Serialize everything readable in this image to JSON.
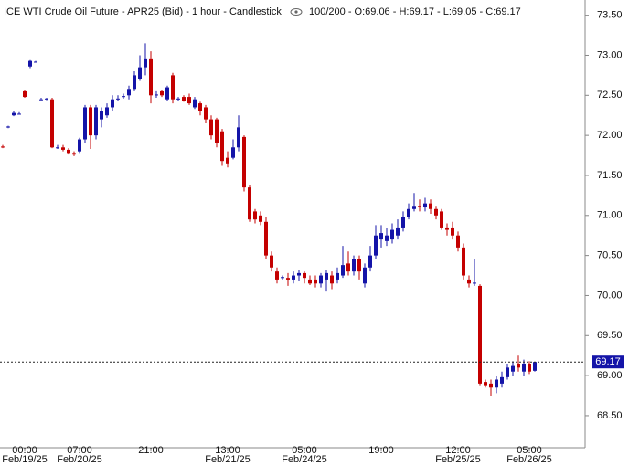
{
  "chart_data": {
    "type": "candlestick",
    "title": "ICE WTI Crude Oil Future - APR25 (Bid) - 1 hour - Candlestick",
    "subtitle": "100/200 - O:69.06 - H:69.17 - L:69.05 - C:69.17",
    "up_color": "#1414a8",
    "down_color": "#c40000",
    "categories": [
      null,
      null,
      null,
      null,
      "00:00",
      null,
      null,
      null,
      null,
      null,
      null,
      null,
      null,
      null,
      "07:00",
      null,
      null,
      null,
      null,
      null,
      null,
      null,
      null,
      null,
      null,
      null,
      null,
      "21:00",
      null,
      null,
      null,
      null,
      null,
      null,
      null,
      null,
      null,
      null,
      null,
      null,
      null,
      "13:00",
      null,
      null,
      null,
      null,
      null,
      null,
      null,
      null,
      null,
      null,
      null,
      null,
      null,
      "05:00",
      null,
      null,
      null,
      null,
      null,
      null,
      null,
      null,
      null,
      null,
      null,
      null,
      null,
      "19:00",
      null,
      null,
      null,
      null,
      null,
      null,
      null,
      null,
      null,
      null,
      null,
      null,
      null,
      "12:00",
      null,
      null,
      null,
      null,
      null,
      null,
      null,
      null,
      null,
      null,
      null,
      null,
      "05:00",
      null
    ],
    "dates": [
      null,
      null,
      null,
      null,
      "Feb/19/25",
      null,
      null,
      null,
      null,
      null,
      null,
      null,
      null,
      null,
      "Feb/20/25",
      null,
      null,
      null,
      null,
      null,
      null,
      null,
      null,
      null,
      null,
      null,
      null,
      null,
      null,
      null,
      null,
      null,
      null,
      null,
      null,
      null,
      null,
      null,
      null,
      null,
      null,
      "Feb/21/25",
      null,
      null,
      null,
      null,
      null,
      null,
      null,
      null,
      null,
      null,
      null,
      null,
      null,
      "Feb/24/25",
      null,
      null,
      null,
      null,
      null,
      null,
      null,
      null,
      null,
      null,
      null,
      null,
      null,
      null,
      null,
      null,
      null,
      null,
      null,
      null,
      null,
      null,
      null,
      null,
      null,
      null,
      null,
      "Feb/25/25",
      null,
      null,
      null,
      null,
      null,
      null,
      null,
      null,
      null,
      null,
      null,
      null,
      "Feb/26/25",
      null
    ],
    "open": [
      71.86,
      72.1,
      72.25,
      72.27,
      72.55,
      72.86,
      72.92,
      72.45,
      72.45,
      72.45,
      71.85,
      71.85,
      71.82,
      71.78,
      71.8,
      71.95,
      72.35,
      72.0,
      72.2,
      72.25,
      72.35,
      72.45,
      72.48,
      72.5,
      72.58,
      72.7,
      72.85,
      72.95,
      72.5,
      72.55,
      72.45,
      72.75,
      72.45,
      72.48,
      72.48,
      72.35,
      72.4,
      72.35,
      72.2,
      72.2,
      72.05,
      71.72,
      71.72,
      71.85,
      71.98,
      71.35,
      71.05,
      71.0,
      70.92,
      70.5,
      70.3,
      70.22,
      70.22,
      70.2,
      70.25,
      70.28,
      70.2,
      70.2,
      70.15,
      70.2,
      70.25,
      70.2,
      70.25,
      70.4,
      70.3,
      70.45,
      70.15,
      70.35,
      70.5,
      70.7,
      70.68,
      70.7,
      70.75,
      70.85,
      70.98,
      71.08,
      71.12,
      71.1,
      71.15,
      71.08,
      71.05,
      70.85,
      70.85,
      70.75,
      70.6,
      70.2,
      70.15,
      70.12,
      68.92,
      68.9,
      68.85,
      68.9,
      68.98,
      69.05,
      69.15,
      69.05,
      69.15,
      69.06
    ],
    "high": [
      71.88,
      72.12,
      72.3,
      72.29,
      72.56,
      72.94,
      72.93,
      72.47,
      72.47,
      72.47,
      71.88,
      71.88,
      71.84,
      71.8,
      71.97,
      72.38,
      72.38,
      72.38,
      72.35,
      72.4,
      72.5,
      72.5,
      72.52,
      72.62,
      72.8,
      73.0,
      73.15,
      73.05,
      72.55,
      72.57,
      72.62,
      72.78,
      72.48,
      72.5,
      72.52,
      72.48,
      72.42,
      72.38,
      72.25,
      72.22,
      72.08,
      71.8,
      71.95,
      72.25,
      72.0,
      71.38,
      71.08,
      71.05,
      70.98,
      70.55,
      70.35,
      70.25,
      70.28,
      70.3,
      70.32,
      70.3,
      70.25,
      70.25,
      70.28,
      70.32,
      70.3,
      70.35,
      70.62,
      70.55,
      70.5,
      70.5,
      70.4,
      70.62,
      70.88,
      70.88,
      70.85,
      70.9,
      70.95,
      71.05,
      71.15,
      71.28,
      71.2,
      71.22,
      71.2,
      71.12,
      71.08,
      70.9,
      70.92,
      70.8,
      70.65,
      70.25,
      70.45,
      70.14,
      68.95,
      68.95,
      69.0,
      69.05,
      69.15,
      69.18,
      69.25,
      69.2,
      69.18,
      69.17
    ],
    "low": [
      71.84,
      72.09,
      72.24,
      72.26,
      72.47,
      72.84,
      72.91,
      72.44,
      72.44,
      71.84,
      71.83,
      71.8,
      71.76,
      71.74,
      71.78,
      71.9,
      71.83,
      71.95,
      72.1,
      72.22,
      72.3,
      72.43,
      72.46,
      72.45,
      72.55,
      72.68,
      72.75,
      72.4,
      72.47,
      72.48,
      72.43,
      72.4,
      72.43,
      72.42,
      72.38,
      72.33,
      72.25,
      72.15,
      71.95,
      71.85,
      71.62,
      71.6,
      71.7,
      71.8,
      71.3,
      70.92,
      70.9,
      70.88,
      70.45,
      70.3,
      70.15,
      70.2,
      70.12,
      70.15,
      70.18,
      70.15,
      70.13,
      70.1,
      70.1,
      70.05,
      70.08,
      70.15,
      70.22,
      70.25,
      70.25,
      70.2,
      70.1,
      70.3,
      70.45,
      70.6,
      70.62,
      70.65,
      70.7,
      70.8,
      70.95,
      71.05,
      71.05,
      71.05,
      71.02,
      70.95,
      70.82,
      70.75,
      70.7,
      70.55,
      70.2,
      70.1,
      70.12,
      68.88,
      68.85,
      68.75,
      68.78,
      68.85,
      68.95,
      69.0,
      69.05,
      69.0,
      69.02,
      69.05
    ],
    "close": [
      71.85,
      72.11,
      72.28,
      72.27,
      72.48,
      72.93,
      72.92,
      72.45,
      72.46,
      71.85,
      71.85,
      71.82,
      71.78,
      71.76,
      71.95,
      72.35,
      72.0,
      72.35,
      72.3,
      72.35,
      72.45,
      72.46,
      72.49,
      72.58,
      72.75,
      72.85,
      72.95,
      72.5,
      72.51,
      72.5,
      72.6,
      72.45,
      72.46,
      72.43,
      72.4,
      72.45,
      72.3,
      72.2,
      72.0,
      71.9,
      71.68,
      71.65,
      71.85,
      72.1,
      71.35,
      70.95,
      70.95,
      70.92,
      70.5,
      70.35,
      70.2,
      70.23,
      70.2,
      70.25,
      70.28,
      70.22,
      70.15,
      70.15,
      70.25,
      70.28,
      70.15,
      70.28,
      70.38,
      70.3,
      70.45,
      70.3,
      70.35,
      70.5,
      70.75,
      70.78,
      70.75,
      70.82,
      70.85,
      70.98,
      71.08,
      71.12,
      71.1,
      71.15,
      71.08,
      71.0,
      70.85,
      70.82,
      70.75,
      70.6,
      70.25,
      70.15,
      70.16,
      68.9,
      68.88,
      68.85,
      68.95,
      68.98,
      69.1,
      69.12,
      69.1,
      69.15,
      69.05,
      69.17
    ],
    "ylim": [
      68.1,
      73.69
    ],
    "yticks": [
      {
        "value": 68.5,
        "label": "68.50"
      },
      {
        "value": 69,
        "label": "69.00"
      },
      {
        "value": 69.5,
        "label": "69.50"
      },
      {
        "value": 70,
        "label": "70.00"
      },
      {
        "value": 70.5,
        "label": "70.50"
      },
      {
        "value": 71,
        "label": "71.00"
      },
      {
        "value": 71.5,
        "label": "71.50"
      },
      {
        "value": 72,
        "label": "72.00"
      },
      {
        "value": 72.5,
        "label": "72.50"
      },
      {
        "value": 73,
        "label": "73.00"
      },
      {
        "value": 73.5,
        "label": "73.50"
      }
    ],
    "last_price": 69.17,
    "last_price_color": "#1414a8"
  }
}
